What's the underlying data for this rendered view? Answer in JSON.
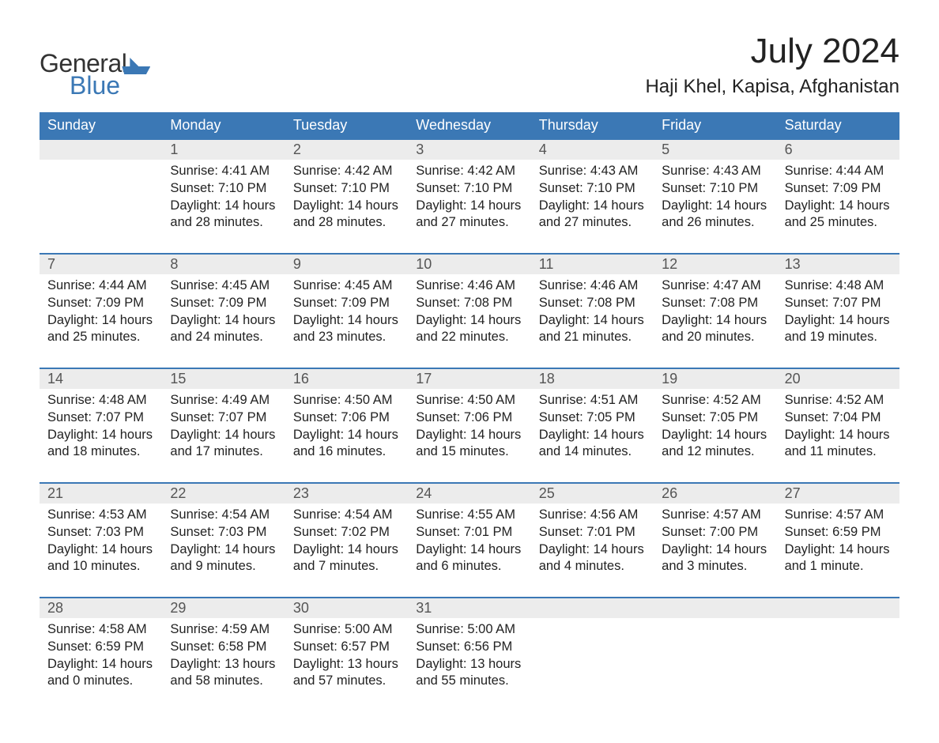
{
  "colors": {
    "brand_blue": "#3b78b5",
    "header_bg": "#3b78b5",
    "header_text": "#ffffff",
    "daynum_bg": "#ececec",
    "daynum_border": "#3b78b5",
    "body_text": "#222222",
    "background": "#ffffff"
  },
  "logo": {
    "word1": "General",
    "word2": "Blue"
  },
  "title": "July 2024",
  "location": "Haji Khel, Kapisa, Afghanistan",
  "day_headers": [
    "Sunday",
    "Monday",
    "Tuesday",
    "Wednesday",
    "Thursday",
    "Friday",
    "Saturday"
  ],
  "weeks": [
    [
      {
        "num": "",
        "sunrise": "",
        "sunset": "",
        "daylight": ""
      },
      {
        "num": "1",
        "sunrise": "Sunrise: 4:41 AM",
        "sunset": "Sunset: 7:10 PM",
        "daylight": "Daylight: 14 hours and 28 minutes."
      },
      {
        "num": "2",
        "sunrise": "Sunrise: 4:42 AM",
        "sunset": "Sunset: 7:10 PM",
        "daylight": "Daylight: 14 hours and 28 minutes."
      },
      {
        "num": "3",
        "sunrise": "Sunrise: 4:42 AM",
        "sunset": "Sunset: 7:10 PM",
        "daylight": "Daylight: 14 hours and 27 minutes."
      },
      {
        "num": "4",
        "sunrise": "Sunrise: 4:43 AM",
        "sunset": "Sunset: 7:10 PM",
        "daylight": "Daylight: 14 hours and 27 minutes."
      },
      {
        "num": "5",
        "sunrise": "Sunrise: 4:43 AM",
        "sunset": "Sunset: 7:10 PM",
        "daylight": "Daylight: 14 hours and 26 minutes."
      },
      {
        "num": "6",
        "sunrise": "Sunrise: 4:44 AM",
        "sunset": "Sunset: 7:09 PM",
        "daylight": "Daylight: 14 hours and 25 minutes."
      }
    ],
    [
      {
        "num": "7",
        "sunrise": "Sunrise: 4:44 AM",
        "sunset": "Sunset: 7:09 PM",
        "daylight": "Daylight: 14 hours and 25 minutes."
      },
      {
        "num": "8",
        "sunrise": "Sunrise: 4:45 AM",
        "sunset": "Sunset: 7:09 PM",
        "daylight": "Daylight: 14 hours and 24 minutes."
      },
      {
        "num": "9",
        "sunrise": "Sunrise: 4:45 AM",
        "sunset": "Sunset: 7:09 PM",
        "daylight": "Daylight: 14 hours and 23 minutes."
      },
      {
        "num": "10",
        "sunrise": "Sunrise: 4:46 AM",
        "sunset": "Sunset: 7:08 PM",
        "daylight": "Daylight: 14 hours and 22 minutes."
      },
      {
        "num": "11",
        "sunrise": "Sunrise: 4:46 AM",
        "sunset": "Sunset: 7:08 PM",
        "daylight": "Daylight: 14 hours and 21 minutes."
      },
      {
        "num": "12",
        "sunrise": "Sunrise: 4:47 AM",
        "sunset": "Sunset: 7:08 PM",
        "daylight": "Daylight: 14 hours and 20 minutes."
      },
      {
        "num": "13",
        "sunrise": "Sunrise: 4:48 AM",
        "sunset": "Sunset: 7:07 PM",
        "daylight": "Daylight: 14 hours and 19 minutes."
      }
    ],
    [
      {
        "num": "14",
        "sunrise": "Sunrise: 4:48 AM",
        "sunset": "Sunset: 7:07 PM",
        "daylight": "Daylight: 14 hours and 18 minutes."
      },
      {
        "num": "15",
        "sunrise": "Sunrise: 4:49 AM",
        "sunset": "Sunset: 7:07 PM",
        "daylight": "Daylight: 14 hours and 17 minutes."
      },
      {
        "num": "16",
        "sunrise": "Sunrise: 4:50 AM",
        "sunset": "Sunset: 7:06 PM",
        "daylight": "Daylight: 14 hours and 16 minutes."
      },
      {
        "num": "17",
        "sunrise": "Sunrise: 4:50 AM",
        "sunset": "Sunset: 7:06 PM",
        "daylight": "Daylight: 14 hours and 15 minutes."
      },
      {
        "num": "18",
        "sunrise": "Sunrise: 4:51 AM",
        "sunset": "Sunset: 7:05 PM",
        "daylight": "Daylight: 14 hours and 14 minutes."
      },
      {
        "num": "19",
        "sunrise": "Sunrise: 4:52 AM",
        "sunset": "Sunset: 7:05 PM",
        "daylight": "Daylight: 14 hours and 12 minutes."
      },
      {
        "num": "20",
        "sunrise": "Sunrise: 4:52 AM",
        "sunset": "Sunset: 7:04 PM",
        "daylight": "Daylight: 14 hours and 11 minutes."
      }
    ],
    [
      {
        "num": "21",
        "sunrise": "Sunrise: 4:53 AM",
        "sunset": "Sunset: 7:03 PM",
        "daylight": "Daylight: 14 hours and 10 minutes."
      },
      {
        "num": "22",
        "sunrise": "Sunrise: 4:54 AM",
        "sunset": "Sunset: 7:03 PM",
        "daylight": "Daylight: 14 hours and 9 minutes."
      },
      {
        "num": "23",
        "sunrise": "Sunrise: 4:54 AM",
        "sunset": "Sunset: 7:02 PM",
        "daylight": "Daylight: 14 hours and 7 minutes."
      },
      {
        "num": "24",
        "sunrise": "Sunrise: 4:55 AM",
        "sunset": "Sunset: 7:01 PM",
        "daylight": "Daylight: 14 hours and 6 minutes."
      },
      {
        "num": "25",
        "sunrise": "Sunrise: 4:56 AM",
        "sunset": "Sunset: 7:01 PM",
        "daylight": "Daylight: 14 hours and 4 minutes."
      },
      {
        "num": "26",
        "sunrise": "Sunrise: 4:57 AM",
        "sunset": "Sunset: 7:00 PM",
        "daylight": "Daylight: 14 hours and 3 minutes."
      },
      {
        "num": "27",
        "sunrise": "Sunrise: 4:57 AM",
        "sunset": "Sunset: 6:59 PM",
        "daylight": "Daylight: 14 hours and 1 minute."
      }
    ],
    [
      {
        "num": "28",
        "sunrise": "Sunrise: 4:58 AM",
        "sunset": "Sunset: 6:59 PM",
        "daylight": "Daylight: 14 hours and 0 minutes."
      },
      {
        "num": "29",
        "sunrise": "Sunrise: 4:59 AM",
        "sunset": "Sunset: 6:58 PM",
        "daylight": "Daylight: 13 hours and 58 minutes."
      },
      {
        "num": "30",
        "sunrise": "Sunrise: 5:00 AM",
        "sunset": "Sunset: 6:57 PM",
        "daylight": "Daylight: 13 hours and 57 minutes."
      },
      {
        "num": "31",
        "sunrise": "Sunrise: 5:00 AM",
        "sunset": "Sunset: 6:56 PM",
        "daylight": "Daylight: 13 hours and 55 minutes."
      },
      {
        "num": "",
        "sunrise": "",
        "sunset": "",
        "daylight": ""
      },
      {
        "num": "",
        "sunrise": "",
        "sunset": "",
        "daylight": ""
      },
      {
        "num": "",
        "sunrise": "",
        "sunset": "",
        "daylight": ""
      }
    ]
  ]
}
